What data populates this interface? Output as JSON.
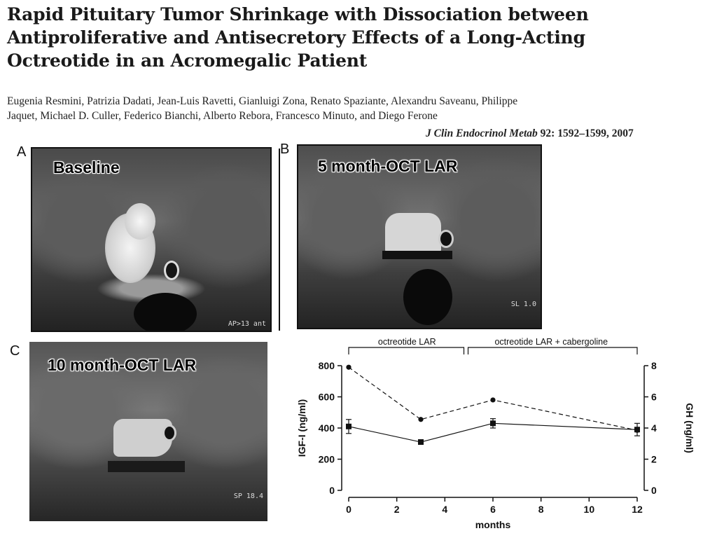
{
  "paper": {
    "title": "Rapid Pituitary Tumor Shrinkage with Dissociation between Antiproliferative and Antisecretory Effects of a Long-Acting Octreotide in an Acromegalic Patient",
    "authors": "Eugenia Resmini, Patrizia Dadati, Jean-Luis Ravetti, Gianluigi Zona, Renato Spaziante, Alexandru Saveanu, Philippe Jaquet, Michael D. Culler, Federico Bianchi, Alberto Rebora, Francesco Minuto, and Diego Ferone",
    "journal": "J Clin Endocrinol Metab",
    "volume_pages_year": "92: 1592–1599, 2007"
  },
  "panels": [
    {
      "letter": "A",
      "caption": "Baseline",
      "overlay_text": "AP>13 ant"
    },
    {
      "letter": "B",
      "caption": "5 month-OCT LAR",
      "overlay_text": "SL 1.0"
    },
    {
      "letter": "C",
      "caption": "10 month-OCT LAR",
      "overlay_text": "SP 18.4"
    }
  ],
  "colors": {
    "background": "#ffffff",
    "text": "#111111",
    "mri_dark": "#2a2a2a",
    "mri_bright": "#e8e8e8"
  },
  "chart_data": {
    "type": "line",
    "bracket_labels": [
      "octreotide LAR",
      "octreotide LAR + cabergoline"
    ],
    "xlabel": "months",
    "ylabel_left": "IGF-I (ng/ml)",
    "ylabel_right": "GH (ng/ml)",
    "x_ticks": [
      0,
      2,
      4,
      6,
      8,
      10,
      12
    ],
    "y_left_ticks": [
      0,
      200,
      400,
      600,
      800
    ],
    "y_right_ticks": [
      0,
      2,
      4,
      6,
      8
    ],
    "xlim": [
      0,
      12
    ],
    "ylim_left": [
      0,
      800
    ],
    "ylim_right": [
      0,
      8
    ],
    "series": [
      {
        "axis": "left",
        "style": "solid",
        "marker": "square",
        "x": [
          0,
          3,
          6,
          12
        ],
        "y": [
          410,
          310,
          430,
          390
        ],
        "err": [
          45,
          15,
          30,
          40
        ]
      },
      {
        "axis": "right",
        "style": "dashed",
        "marker": "circle",
        "x": [
          0,
          3,
          6,
          12
        ],
        "y": [
          7.9,
          4.55,
          5.8,
          3.85
        ],
        "err": [
          0,
          0,
          0,
          0
        ]
      }
    ]
  }
}
